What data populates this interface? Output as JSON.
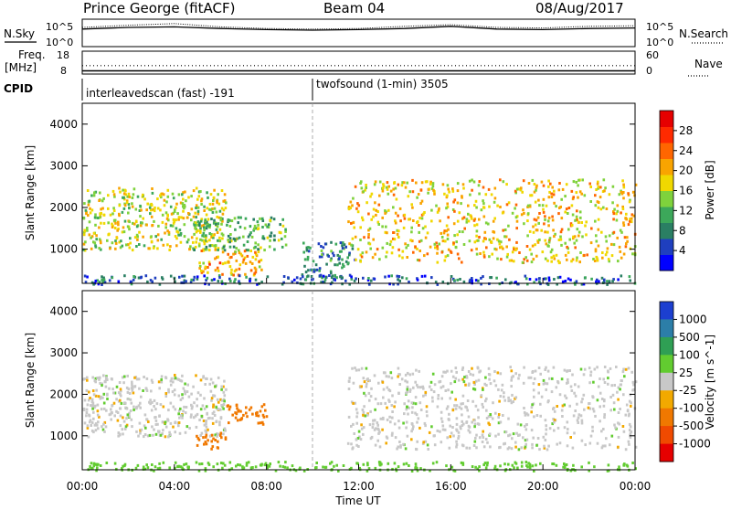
{
  "header": {
    "station": "Prince George (fitACF)",
    "beam": "Beam 04",
    "date": "08/Aug/2017"
  },
  "strip_labels": {
    "nsky": "N.Sky",
    "nsearch": "N.Search",
    "freq": "Freq.",
    "freq_unit": "[MHz]",
    "nave": "Nave",
    "cpid": "CPID",
    "noise_left_ticks": [
      "10^5",
      "10^0"
    ],
    "noise_right_ticks": [
      "10^5",
      "10^0"
    ],
    "freq_left_ticks": [
      "18",
      "8"
    ],
    "freq_right_ticks": [
      "60",
      "0"
    ]
  },
  "cpid_programs": [
    {
      "label": "interleavedscan (fast) -191",
      "start_hour": 0
    },
    {
      "label": "twofsound (1-min) 3505",
      "start_hour": 10
    }
  ],
  "axes": {
    "x_label": "Time UT",
    "x_ticks": [
      "00:00",
      "04:00",
      "08:00",
      "12:00",
      "16:00",
      "20:00",
      "00:00"
    ],
    "y_label": "Slant Range [km]",
    "y_ticks": [
      "1000",
      "2000",
      "3000",
      "4000"
    ]
  },
  "colorbars": {
    "power": {
      "label": "Power [dB]",
      "ticks": [
        "4",
        "8",
        "12",
        "16",
        "20",
        "24",
        "28"
      ],
      "colors": [
        "#0000ff",
        "#1f3fbf",
        "#2a7f63",
        "#3ca85a",
        "#7fd23c",
        "#f0d800",
        "#f9a400",
        "#ff6600",
        "#ff2a00",
        "#e60000"
      ]
    },
    "velocity": {
      "label": "Velocity [m s^-1]",
      "ticks": [
        "1000",
        "500",
        "100",
        "25",
        "-25",
        "-100",
        "-500",
        "-1000"
      ],
      "colors": [
        "#1c3fd0",
        "#2c7ea8",
        "#2f9f54",
        "#62cc30",
        "#c8c8c8",
        "#f2a900",
        "#f07800",
        "#f04a00",
        "#e60000"
      ]
    }
  },
  "chart_data": [
    {
      "type": "line",
      "title": "N.Sky / N.Search",
      "x_range_hours": [
        0,
        24
      ],
      "ylim_log10": [
        0,
        5
      ],
      "series": [
        {
          "name": "N.Sky",
          "x": [
            0,
            2,
            4,
            6,
            8,
            10,
            12,
            14,
            16,
            18,
            20,
            22,
            24
          ],
          "values_log10": [
            3.2,
            3.5,
            3.6,
            3.3,
            3.1,
            3.0,
            3.1,
            3.3,
            3.7,
            3.2,
            3.1,
            3.3,
            3.4
          ]
        },
        {
          "name": "N.Search",
          "x": [
            0,
            2,
            4,
            6,
            8,
            10,
            12,
            14,
            16,
            18,
            20,
            22,
            24
          ],
          "values_log10": [
            3.5,
            3.9,
            4.2,
            3.6,
            3.3,
            3.2,
            3.3,
            3.7,
            4.0,
            3.5,
            3.4,
            3.7,
            3.8
          ]
        }
      ]
    },
    {
      "type": "line",
      "title": "Freq. / Nave",
      "x_range_hours": [
        0,
        24
      ],
      "ylim_freq": [
        8,
        18
      ],
      "ylim_nave": [
        0,
        60
      ],
      "series": [
        {
          "name": "Freq.",
          "x": [
            0,
            24
          ],
          "values": [
            9.4,
            9.4
          ]
        },
        {
          "name": "Nave",
          "x": [
            0,
            24
          ],
          "values": [
            22,
            22
          ]
        }
      ]
    },
    {
      "type": "heatmap",
      "title": "Power [dB]",
      "xlabel": "",
      "ylabel": "Slant Range [km]",
      "x_range_hours": [
        0,
        24
      ],
      "ylim": [
        180,
        4500
      ],
      "regions": [
        {
          "t": [
            0.0,
            6.2
          ],
          "r": [
            1000,
            2500
          ],
          "dB_center": 16
        },
        {
          "t": [
            4.8,
            8.8
          ],
          "r": [
            1000,
            1800
          ],
          "dB_center": 12
        },
        {
          "t": [
            5.0,
            7.8
          ],
          "r": [
            400,
            1000
          ],
          "dB_center": 20
        },
        {
          "t": [
            9.5,
            11.8
          ],
          "r": [
            300,
            1200
          ],
          "dB_center": 8
        },
        {
          "t": [
            11.5,
            24.0
          ],
          "r": [
            700,
            2700
          ],
          "dB_center": 18
        },
        {
          "t": [
            0.0,
            24.0
          ],
          "r": [
            180,
            400
          ],
          "dB_center": 6
        }
      ]
    },
    {
      "type": "heatmap",
      "title": "Velocity [m s^-1]",
      "xlabel": "Time UT",
      "ylabel": "Slant Range [km]",
      "x_range_hours": [
        0,
        24
      ],
      "ylim": [
        180,
        4500
      ],
      "regions": [
        {
          "t": [
            0.0,
            6.2
          ],
          "r": [
            1000,
            2500
          ],
          "vel_center": 0
        },
        {
          "t": [
            6.2,
            8.0
          ],
          "r": [
            1300,
            1800
          ],
          "vel_center": -300
        },
        {
          "t": [
            4.8,
            6.2
          ],
          "r": [
            700,
            1100
          ],
          "vel_center": -150
        },
        {
          "t": [
            11.5,
            24.0
          ],
          "r": [
            700,
            2700
          ],
          "vel_center": 0
        },
        {
          "t": [
            0.0,
            24.0
          ],
          "r": [
            180,
            400
          ],
          "vel_center": 60
        }
      ]
    }
  ]
}
